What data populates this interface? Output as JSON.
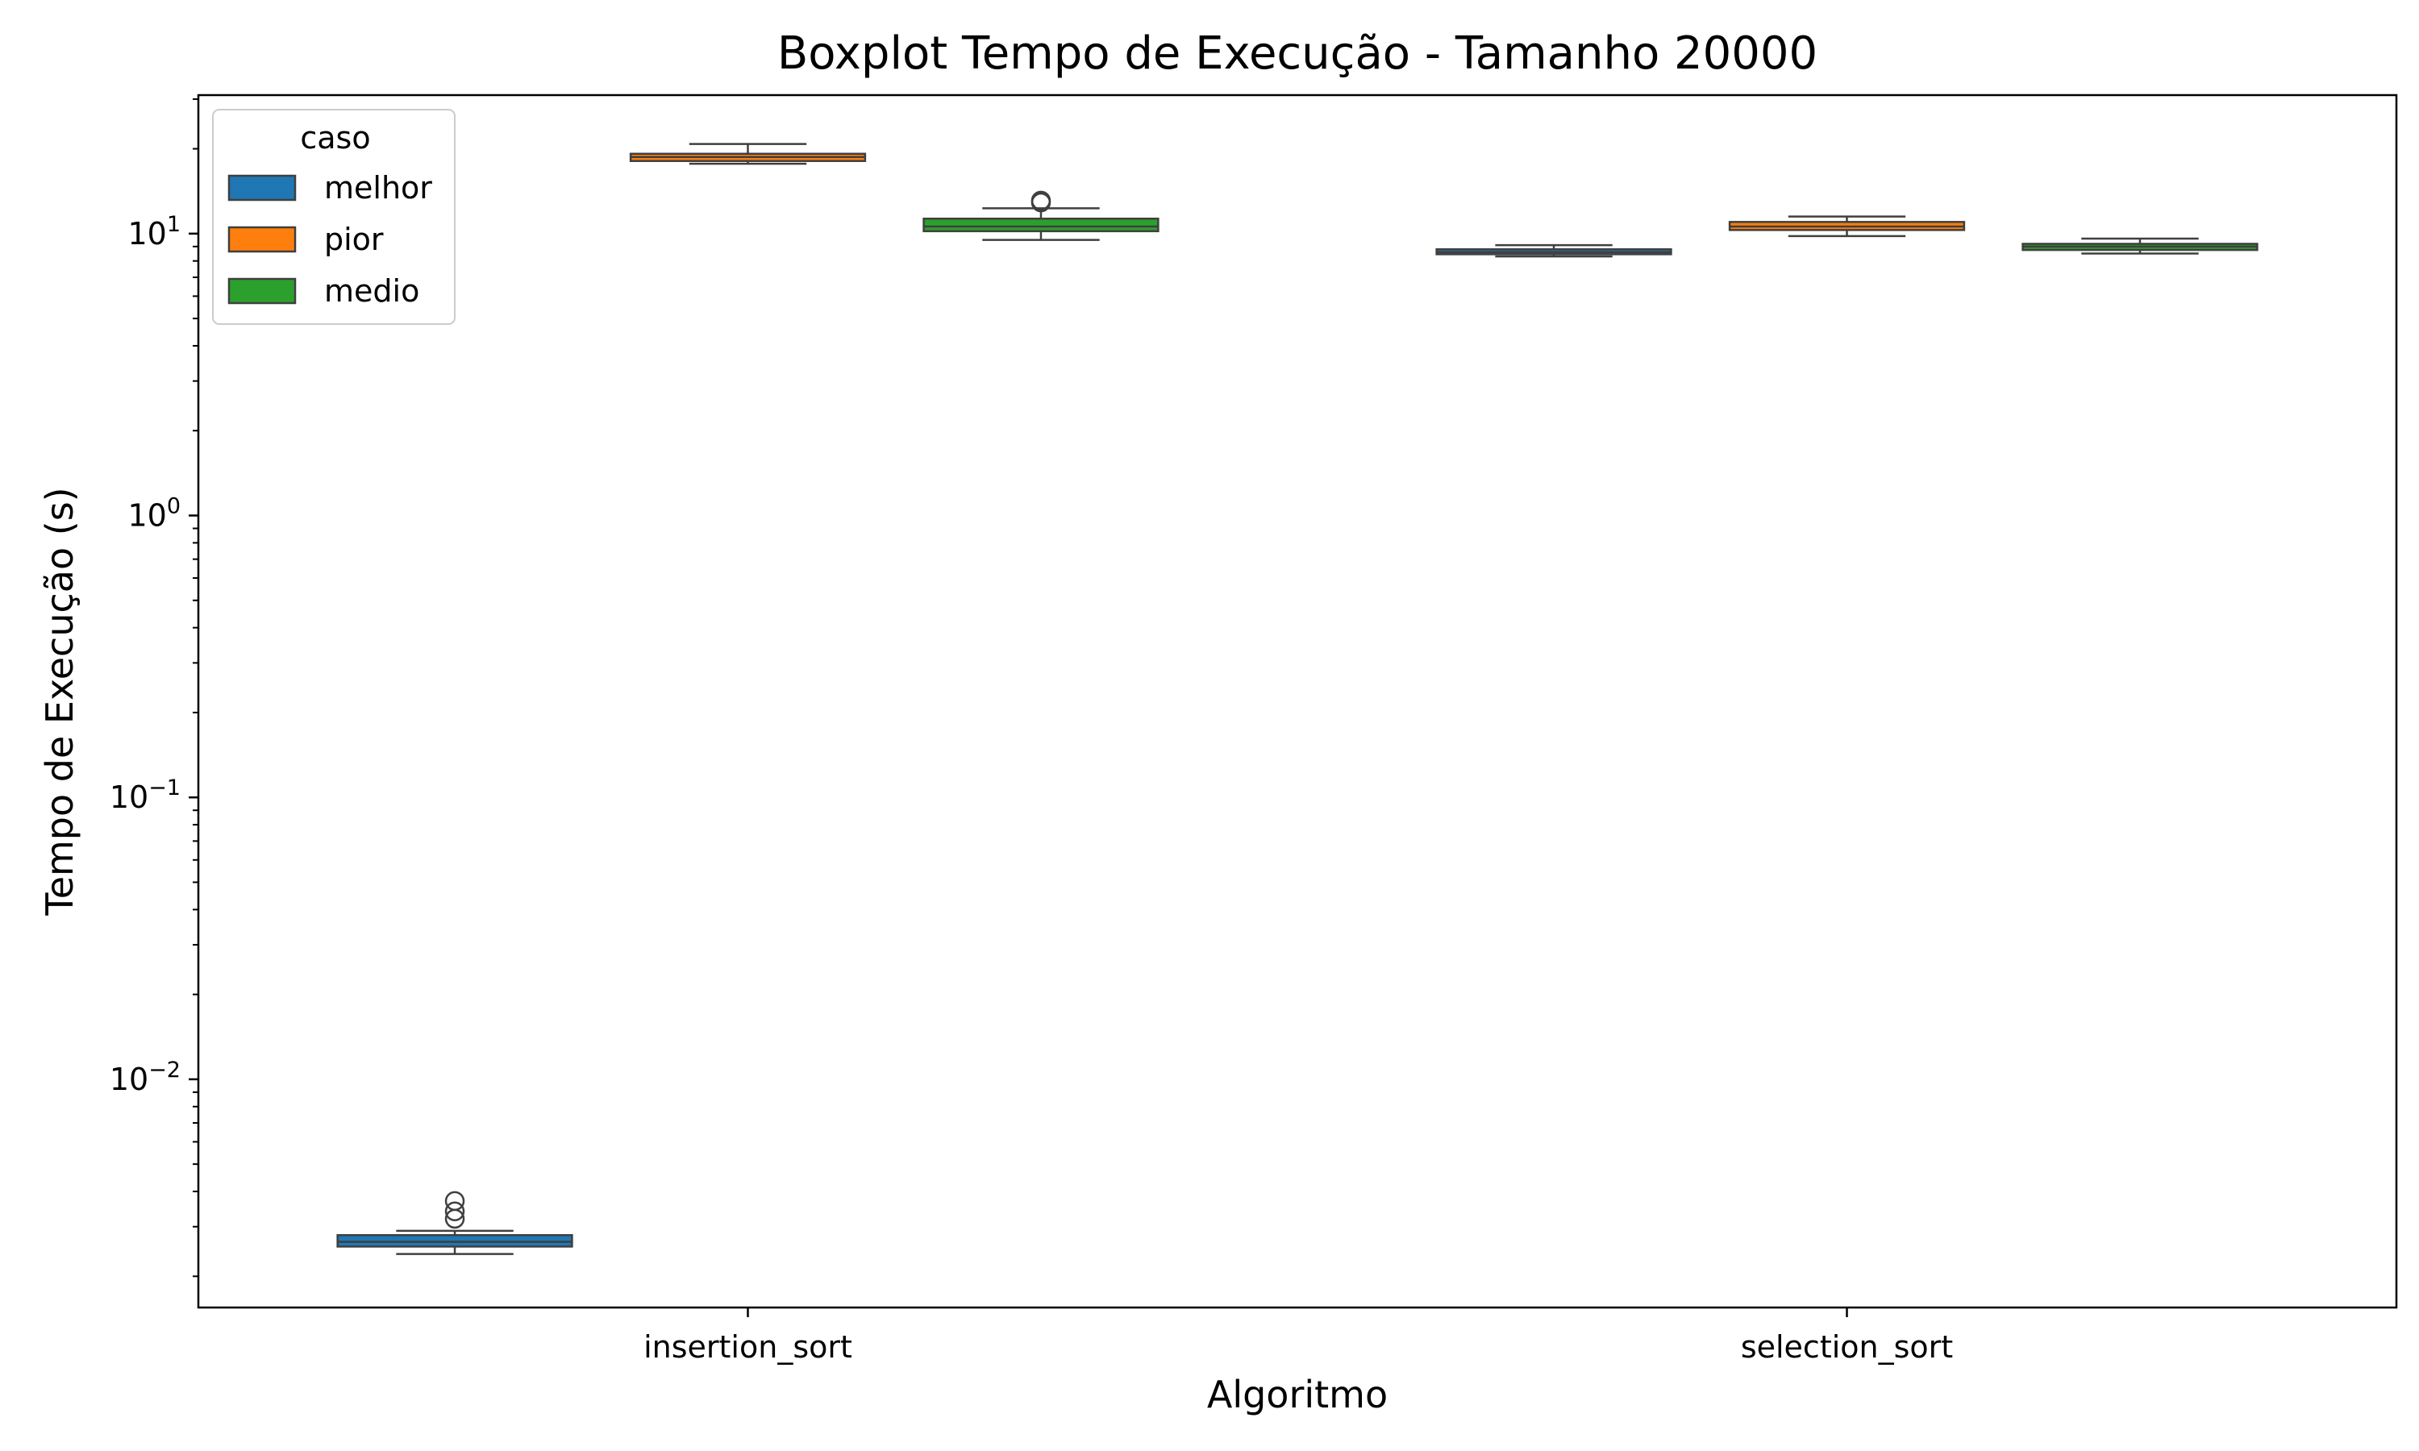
{
  "chart_data": {
    "type": "box",
    "title": "Boxplot Tempo de Execução - Tamanho 20000",
    "xlabel": "Algoritmo",
    "ylabel": "Tempo de Execução (s)",
    "yscale": "log",
    "ylim": [
      0.00155,
      31
    ],
    "yticks": [
      {
        "value": 0.01,
        "base": "10",
        "exp": "−2"
      },
      {
        "value": 0.1,
        "base": "10",
        "exp": "−1"
      },
      {
        "value": 1,
        "base": "10",
        "exp": "0"
      },
      {
        "value": 10,
        "base": "10",
        "exp": "1"
      }
    ],
    "categories": [
      "insertion_sort",
      "selection_sort"
    ],
    "grid": false,
    "legend": {
      "title": "caso",
      "placement": "upper-left",
      "entries": [
        {
          "label": "melhor",
          "color": "#1f77b4"
        },
        {
          "label": "pior",
          "color": "#ff7f0e"
        },
        {
          "label": "medio",
          "color": "#2ca02c"
        }
      ]
    },
    "series": [
      {
        "name": "melhor",
        "color": "#1f77b4",
        "boxes": [
          {
            "whisker_low": 0.0024,
            "q1": 0.00255,
            "median": 0.00265,
            "q3": 0.0028,
            "whisker_high": 0.0029,
            "outliers": [
              0.0032,
              0.0034,
              0.0037
            ]
          },
          {
            "whisker_low": 8.3,
            "q1": 8.45,
            "median": 8.6,
            "q3": 8.8,
            "whisker_high": 9.1,
            "outliers": []
          }
        ]
      },
      {
        "name": "pior",
        "color": "#ff7f0e",
        "boxes": [
          {
            "whisker_low": 17.7,
            "q1": 18.1,
            "median": 18.7,
            "q3": 19.2,
            "whisker_high": 20.8,
            "outliers": []
          },
          {
            "whisker_low": 9.8,
            "q1": 10.3,
            "median": 10.6,
            "q3": 11.0,
            "whisker_high": 11.5,
            "outliers": []
          }
        ]
      },
      {
        "name": "medio",
        "color": "#2ca02c",
        "boxes": [
          {
            "whisker_low": 9.5,
            "q1": 10.2,
            "median": 10.6,
            "q3": 11.3,
            "whisker_high": 12.3,
            "outliers": [
              12.9,
              13.1
            ]
          },
          {
            "whisker_low": 8.5,
            "q1": 8.75,
            "median": 9.0,
            "q3": 9.2,
            "whisker_high": 9.6,
            "outliers": []
          }
        ]
      }
    ]
  }
}
